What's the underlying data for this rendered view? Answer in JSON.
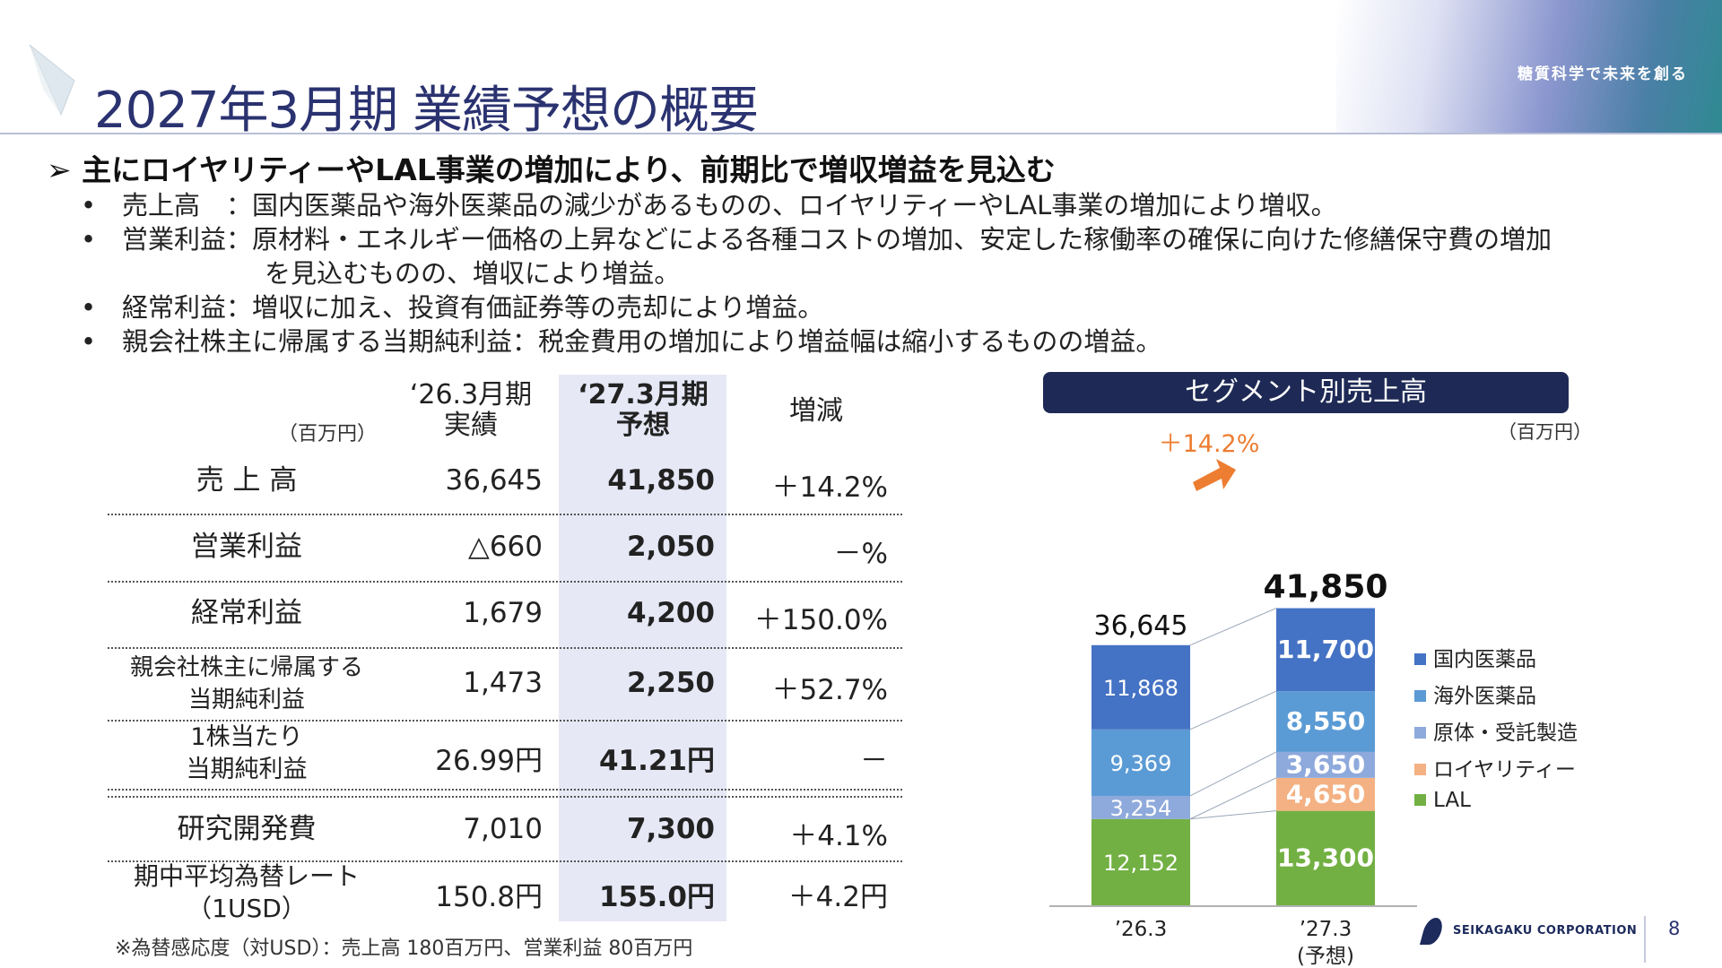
{
  "title": "2027年3月期 業績予想の概要",
  "tagline": "糖質科学で未来を創る",
  "lead": "➢ 主にロイヤリティーやLAL事業の増加により、前期比で増収増益を見込む",
  "bullets": [
    {
      "label": "売上高　：",
      "text": "国内医薬品や海外医薬品の減少があるものの、ロイヤリティーやLAL事業の増加により増収。"
    },
    {
      "label": "営業利益：",
      "text": "原材料・エネルギー価格の上昇などによる各種コストの増加、安定した稼働率の確保に向けた修繕保守費の増加"
    },
    {
      "label": "",
      "text": "を見込むものの、増収により増益。"
    },
    {
      "label": "経常利益：",
      "text": "増収に加え、投資有価証券等の売却により増益。"
    },
    {
      "label": "親会社株主に帰属する当期純利益：",
      "text": "税金費用の増加により増益幅は縮小するものの増益。"
    }
  ],
  "table": {
    "unit": "（百万円）",
    "headers": {
      "prev": "‘26.3月期\n実績",
      "forecast": "‘27.3月期\n予想",
      "change": "増減"
    },
    "rows": [
      {
        "label": "売 上 高",
        "prev": "36,645",
        "forecast": "41,850",
        "change": "＋14.2%"
      },
      {
        "label": "営業利益",
        "prev": "△660",
        "forecast": "2,050",
        "change": "－%"
      },
      {
        "label": "経常利益",
        "prev": "1,679",
        "forecast": "4,200",
        "change": "＋150.0%"
      },
      {
        "label": "親会社株主に帰属する\n当期純利益",
        "prev": "1,473",
        "forecast": "2,250",
        "change": "＋52.7%"
      },
      {
        "label": "1株当たり\n当期純利益",
        "prev": "26.99円",
        "forecast": "41.21円",
        "change": "－"
      },
      {
        "label": "研究開発費",
        "prev": "7,010",
        "forecast": "7,300",
        "change": "＋4.1%"
      },
      {
        "label": "期中平均為替レート\n（1USD）",
        "prev": "150.8円",
        "forecast": "155.0円",
        "change": "＋4.2円"
      }
    ],
    "note": "※為替感応度（対USD）：売上高 180百万円、営業利益 80百万円"
  },
  "segment": {
    "title": "セグメント別売上高",
    "unit": "（百万円）"
  },
  "chart_data": {
    "type": "bar",
    "stacked": true,
    "categories": [
      "’26.3",
      "’27.3\n(予想)"
    ],
    "totals": [
      36645,
      41850
    ],
    "growth_label": "＋14.2%",
    "series": [
      {
        "name": "LAL",
        "values": [
          12152,
          13300
        ],
        "color": "#72b043"
      },
      {
        "name": "ロイヤリティー",
        "values": [
          0,
          4650
        ],
        "color": "#f4b183"
      },
      {
        "name": "原体・受託製造",
        "values": [
          3254,
          3650
        ],
        "color": "#8ea9db"
      },
      {
        "name": "海外医薬品",
        "values": [
          9369,
          8550
        ],
        "color": "#5b9bd5"
      },
      {
        "name": "国内医薬品",
        "values": [
          11868,
          11700
        ],
        "color": "#4472c4"
      }
    ],
    "legend_position": "right",
    "grid": false
  },
  "footer": {
    "company": "SEIKAGAKU CORPORATION",
    "page": "8"
  }
}
